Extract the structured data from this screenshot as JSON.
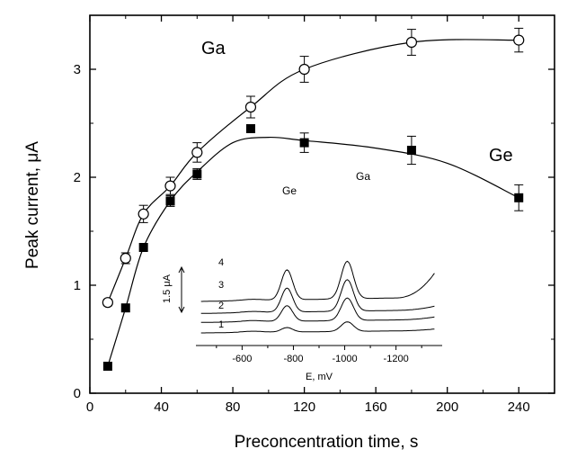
{
  "chart_data": [
    {
      "type": "line",
      "xlabel": "Preconcentration time, s",
      "ylabel": "Peak current, μA",
      "xlim": [
        0,
        260
      ],
      "ylim": [
        0,
        3.5
      ],
      "x_ticks": [
        "0",
        "40",
        "80",
        "120",
        "160",
        "200",
        "240"
      ],
      "y_ticks": [
        "0",
        "1",
        "2",
        "3"
      ],
      "grid": false,
      "series": [
        {
          "name": "Ga",
          "marker": "open-circle",
          "x": [
            10,
            20,
            30,
            45,
            60,
            90,
            120,
            180,
            240
          ],
          "y": [
            0.84,
            1.25,
            1.66,
            1.92,
            2.23,
            2.65,
            3.0,
            3.25,
            3.27
          ],
          "err": [
            0.03,
            0.05,
            0.08,
            0.08,
            0.09,
            0.1,
            0.12,
            0.12,
            0.11
          ]
        },
        {
          "name": "Ge",
          "marker": "filled-square",
          "x": [
            10,
            20,
            30,
            45,
            60,
            90,
            120,
            180,
            240
          ],
          "y": [
            0.25,
            0.79,
            1.35,
            1.78,
            2.03,
            2.45,
            2.32,
            2.25,
            1.81
          ],
          "err": [
            0.0,
            0.0,
            0.0,
            0.05,
            0.05,
            0.0,
            0.09,
            0.13,
            0.12
          ]
        }
      ]
    },
    {
      "type": "line",
      "xlabel": "E, mV",
      "xlim": [
        -420,
        -1380
      ],
      "x_ticks": [
        "-600",
        "-800",
        "-1000",
        "-1200"
      ],
      "scale_bar_label": "1.5 μA",
      "peak_labels": [
        "Ge",
        "Ga"
      ],
      "curve_labels": [
        "1",
        "2",
        "3",
        "4"
      ],
      "curves": [
        {
          "name": "1",
          "offset": 0,
          "ge_height": 0.15,
          "ga_height": 0.32,
          "baseline_slope": 0.08,
          "tail": 0.05
        },
        {
          "name": "2",
          "offset": 0.35,
          "ge_height": 0.52,
          "ga_height": 0.75,
          "baseline_slope": 0.1,
          "tail": 0.08
        },
        {
          "name": "3",
          "offset": 0.65,
          "ge_height": 0.8,
          "ga_height": 1.05,
          "baseline_slope": 0.12,
          "tail": 0.12
        },
        {
          "name": "4",
          "offset": 1.05,
          "ge_height": 1.0,
          "ga_height": 1.25,
          "baseline_slope": 0.14,
          "tail": 0.8
        }
      ]
    }
  ]
}
